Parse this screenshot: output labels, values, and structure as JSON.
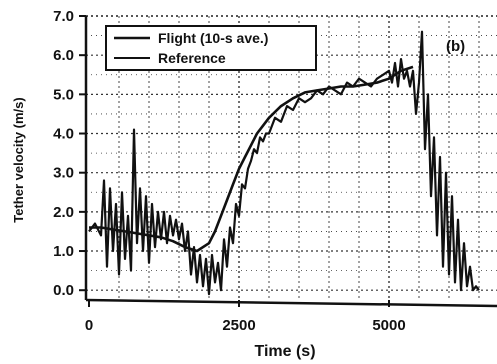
{
  "chart_data": {
    "type": "line",
    "panel_label": "(b)",
    "xlabel": "Time (s)",
    "ylabel": "Tether velocity (m/s)",
    "xlim": [
      -50,
      6800
    ],
    "ylim": [
      -0.25,
      7.0
    ],
    "x_ticks": [
      0,
      2500,
      5000
    ],
    "x_tick_labels": [
      "0",
      "2500",
      "5000"
    ],
    "y_ticks": [
      0,
      1,
      2,
      3,
      4,
      5,
      6,
      7
    ],
    "y_tick_labels": [
      "0.0",
      "1.0",
      "2.0",
      "3.0",
      "4.0",
      "5.0",
      "6.0",
      "7.0"
    ],
    "grid": true,
    "legend_position": "top-left",
    "colors": {
      "line": "#111111",
      "grid": "#333333",
      "background": "#ffffff"
    },
    "series": [
      {
        "name": "Flight  (10-s ave.)",
        "style": "noisy",
        "x": [
          0,
          100,
          200,
          250,
          300,
          350,
          400,
          450,
          500,
          550,
          600,
          650,
          700,
          750,
          800,
          850,
          900,
          950,
          1000,
          1050,
          1100,
          1150,
          1200,
          1250,
          1300,
          1350,
          1400,
          1450,
          1500,
          1550,
          1600,
          1650,
          1700,
          1750,
          1800,
          1850,
          1900,
          1950,
          2000,
          2050,
          2100,
          2150,
          2200,
          2250,
          2300,
          2350,
          2400,
          2450,
          2500,
          2550,
          2600,
          2650,
          2700,
          2750,
          2800,
          2850,
          2900,
          2950,
          3000,
          3100,
          3200,
          3300,
          3400,
          3500,
          3600,
          3700,
          3800,
          3900,
          4000,
          4100,
          4200,
          4300,
          4400,
          4500,
          4600,
          4700,
          4800,
          4900,
          5000,
          5050,
          5100,
          5150,
          5200,
          5250,
          5300,
          5350,
          5400,
          5450,
          5500,
          5550,
          5600,
          5650,
          5700,
          5750,
          5800,
          5850,
          5900,
          5950,
          6000,
          6050,
          6100,
          6150,
          6200,
          6250,
          6300,
          6350,
          6400,
          6450,
          6500
        ],
        "y": [
          1.5,
          1.7,
          1.4,
          2.8,
          0.6,
          2.6,
          1.0,
          2.2,
          0.4,
          2.5,
          0.8,
          1.9,
          0.5,
          4.1,
          1.2,
          2.6,
          1.0,
          2.4,
          0.7,
          2.2,
          1.1,
          2.0,
          1.3,
          2.0,
          1.2,
          1.9,
          1.4,
          1.8,
          1.3,
          1.7,
          1.0,
          1.5,
          0.4,
          1.1,
          0.2,
          0.9,
          0.1,
          0.8,
          -0.1,
          0.9,
          0.2,
          0.7,
          0.0,
          1.3,
          0.6,
          1.6,
          1.2,
          2.2,
          1.9,
          2.7,
          2.6,
          3.1,
          3.3,
          3.6,
          3.5,
          3.9,
          3.8,
          4.0,
          4.0,
          4.4,
          4.3,
          4.7,
          4.6,
          4.9,
          4.8,
          4.9,
          5.1,
          5.0,
          5.2,
          5.1,
          5.0,
          5.3,
          5.2,
          5.4,
          5.3,
          5.2,
          5.4,
          5.5,
          5.6,
          5.3,
          5.8,
          5.2,
          5.9,
          5.4,
          5.6,
          5.2,
          5.6,
          4.5,
          5.3,
          6.6,
          3.6,
          5.0,
          2.4,
          3.9,
          1.4,
          3.4,
          0.6,
          3.0,
          0.4,
          2.4,
          0.2,
          1.8,
          0.0,
          1.2,
          0.1,
          0.6,
          0.0,
          0.1,
          0.0
        ]
      },
      {
        "name": "Reference",
        "style": "smooth",
        "x": [
          0,
          200,
          400,
          600,
          800,
          1000,
          1200,
          1400,
          1600,
          1800,
          2000,
          2100,
          2200,
          2300,
          2400,
          2500,
          2600,
          2700,
          2800,
          2900,
          3000,
          3200,
          3400,
          3600,
          3800,
          4000,
          4200,
          4400,
          4600,
          4800,
          5000,
          5200,
          5400
        ],
        "y": [
          1.6,
          1.6,
          1.55,
          1.5,
          1.45,
          1.4,
          1.35,
          1.25,
          1.1,
          1.0,
          1.2,
          1.5,
          1.9,
          2.3,
          2.7,
          3.1,
          3.4,
          3.7,
          4.0,
          4.2,
          4.4,
          4.7,
          4.9,
          5.05,
          5.1,
          5.15,
          5.2,
          5.2,
          5.25,
          5.3,
          5.4,
          5.6,
          5.7
        ]
      }
    ]
  }
}
